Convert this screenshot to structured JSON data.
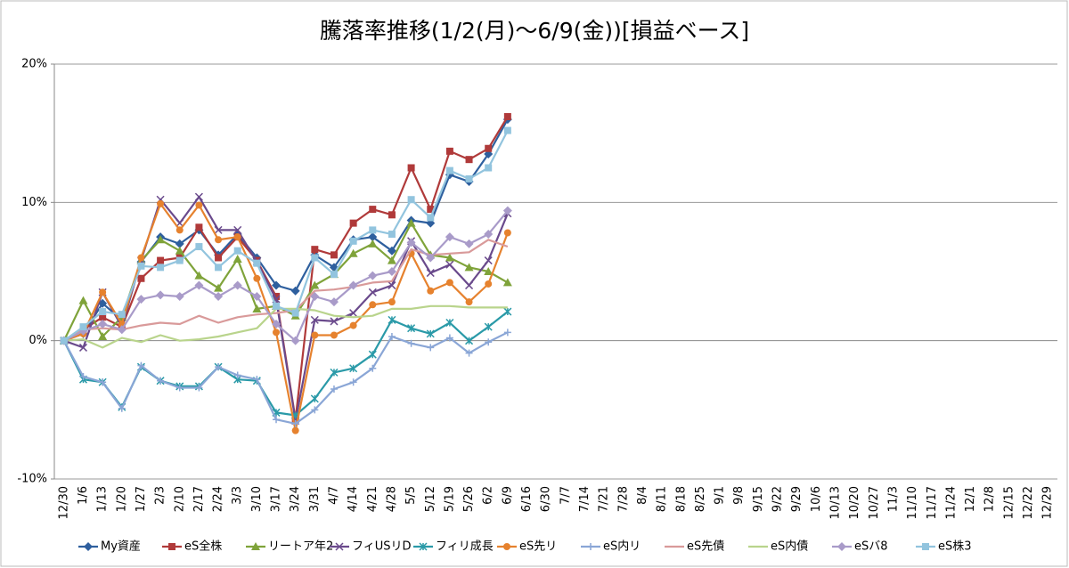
{
  "chart_data": {
    "type": "line",
    "title": "騰落率推移(1/2(月)〜6/9(金))[損益ベース]",
    "categories": [
      "12/30",
      "1/6",
      "1/13",
      "1/20",
      "1/27",
      "2/3",
      "2/10",
      "2/17",
      "2/24",
      "3/3",
      "3/10",
      "3/17",
      "3/24",
      "3/31",
      "4/7",
      "4/14",
      "4/21",
      "4/28",
      "5/5",
      "5/12",
      "5/19",
      "5/26",
      "6/2",
      "6/9",
      "6/16",
      "6/30",
      "7/7",
      "7/14",
      "7/21",
      "7/28",
      "8/4",
      "8/11",
      "8/18",
      "8/25",
      "9/1",
      "9/8",
      "9/15",
      "9/22",
      "9/29",
      "10/6",
      "10/13",
      "10/20",
      "10/27",
      "11/3",
      "11/10",
      "11/17",
      "11/24",
      "12/1",
      "12/8",
      "12/15",
      "12/22",
      "12/29"
    ],
    "ylim": [
      -10,
      20
    ],
    "yticks": [
      {
        "value": -10,
        "label": "-10%"
      },
      {
        "value": 0,
        "label": "0%"
      },
      {
        "value": 10,
        "label": "10%"
      },
      {
        "value": 20,
        "label": "20%"
      }
    ],
    "grid": true,
    "legend": "bottom",
    "series": [
      {
        "name": "My資産",
        "color": "#2e5f9e",
        "marker": "diamond",
        "values": [
          0,
          0.5,
          2.7,
          1.5,
          5.7,
          7.5,
          7.0,
          8.0,
          6.2,
          7.7,
          6.0,
          4.0,
          3.6,
          6.2,
          5.3,
          7.3,
          7.5,
          6.5,
          8.7,
          8.5,
          12.0,
          11.5,
          13.5,
          16.0,
          null,
          null,
          null,
          null,
          null,
          null,
          null,
          null,
          null,
          null,
          null,
          null,
          null,
          null,
          null,
          null,
          null,
          null,
          null,
          null,
          null,
          null,
          null,
          null,
          null,
          null,
          null,
          null
        ]
      },
      {
        "name": "eS全株",
        "color": "#b03a3a",
        "marker": "square",
        "values": [
          0,
          0.8,
          1.7,
          1.0,
          4.5,
          5.8,
          6.0,
          8.2,
          6.0,
          7.5,
          5.8,
          3.2,
          -5.7,
          6.6,
          6.2,
          8.5,
          9.5,
          9.1,
          12.5,
          9.5,
          13.7,
          13.1,
          13.9,
          16.2,
          null,
          null,
          null,
          null,
          null,
          null,
          null,
          null,
          null,
          null,
          null,
          null,
          null,
          null,
          null,
          null,
          null,
          null,
          null,
          null,
          null,
          null,
          null,
          null,
          null,
          null,
          null,
          null
        ]
      },
      {
        "name": "リートア年2",
        "color": "#7fa33a",
        "marker": "triangle",
        "values": [
          0,
          2.9,
          0.3,
          1.7,
          5.8,
          7.3,
          6.5,
          4.7,
          3.8,
          5.9,
          2.3,
          2.5,
          1.8,
          4.0,
          4.8,
          6.3,
          7.0,
          5.8,
          8.5,
          6.2,
          6.0,
          5.3,
          5.0,
          4.2,
          null,
          null,
          null,
          null,
          null,
          null,
          null,
          null,
          null,
          null,
          null,
          null,
          null,
          null,
          null,
          null,
          null,
          null,
          null,
          null,
          null,
          null,
          null,
          null,
          null,
          null,
          null,
          null
        ]
      },
      {
        "name": "フィUSリD",
        "color": "#6a4a8c",
        "marker": "x",
        "values": [
          0,
          -0.5,
          3.5,
          1.0,
          5.8,
          10.2,
          8.5,
          10.4,
          8.0,
          8.0,
          5.7,
          3.0,
          -5.8,
          1.5,
          1.4,
          2.0,
          3.5,
          4.0,
          7.2,
          4.9,
          5.5,
          4.0,
          5.8,
          9.2,
          null,
          null,
          null,
          null,
          null,
          null,
          null,
          null,
          null,
          null,
          null,
          null,
          null,
          null,
          null,
          null,
          null,
          null,
          null,
          null,
          null,
          null,
          null,
          null,
          null,
          null,
          null,
          null
        ]
      },
      {
        "name": "フィリ成長",
        "color": "#2a9aa8",
        "marker": "asterisk",
        "values": [
          0,
          -2.8,
          -3.0,
          -4.8,
          -1.9,
          -2.9,
          -3.3,
          -3.3,
          -1.9,
          -2.8,
          -2.9,
          -5.2,
          -5.4,
          -4.2,
          -2.3,
          -2.0,
          -1.0,
          1.5,
          0.9,
          0.5,
          1.3,
          0.0,
          1.0,
          2.1,
          null,
          null,
          null,
          null,
          null,
          null,
          null,
          null,
          null,
          null,
          null,
          null,
          null,
          null,
          null,
          null,
          null,
          null,
          null,
          null,
          null,
          null,
          null,
          null,
          null,
          null,
          null,
          null
        ]
      },
      {
        "name": "eS先リ",
        "color": "#e6822e",
        "marker": "circle",
        "values": [
          0,
          0.5,
          3.5,
          1.2,
          6.0,
          9.9,
          8.0,
          9.8,
          7.3,
          7.5,
          4.5,
          0.6,
          -6.5,
          0.4,
          0.4,
          1.1,
          2.6,
          2.8,
          6.3,
          3.6,
          4.2,
          2.8,
          4.1,
          7.8,
          null,
          null,
          null,
          null,
          null,
          null,
          null,
          null,
          null,
          null,
          null,
          null,
          null,
          null,
          null,
          null,
          null,
          null,
          null,
          null,
          null,
          null,
          null,
          null,
          null,
          null,
          null,
          null
        ]
      },
      {
        "name": "eS内リ",
        "color": "#8aa6d6",
        "marker": "plus",
        "values": [
          0,
          -2.6,
          -3.0,
          -4.9,
          -1.8,
          -2.9,
          -3.4,
          -3.4,
          -1.9,
          -2.5,
          -2.8,
          -5.7,
          -6.0,
          -5.0,
          -3.5,
          -3.0,
          -2.0,
          0.3,
          -0.2,
          -0.5,
          0.2,
          -0.9,
          -0.1,
          0.6,
          null,
          null,
          null,
          null,
          null,
          null,
          null,
          null,
          null,
          null,
          null,
          null,
          null,
          null,
          null,
          null,
          null,
          null,
          null,
          null,
          null,
          null,
          null,
          null,
          null,
          null,
          null,
          null
        ]
      },
      {
        "name": "eS先債",
        "color": "#d99a9a",
        "marker": "none",
        "values": [
          0,
          0.8,
          0.9,
          0.8,
          1.1,
          1.3,
          1.2,
          1.8,
          1.3,
          1.7,
          1.9,
          2.0,
          2.2,
          3.6,
          3.7,
          3.9,
          4.2,
          4.3,
          6.6,
          6.2,
          6.3,
          6.4,
          7.3,
          6.8,
          null,
          null,
          null,
          null,
          null,
          null,
          null,
          null,
          null,
          null,
          null,
          null,
          null,
          null,
          null,
          null,
          null,
          null,
          null,
          null,
          null,
          null,
          null,
          null,
          null,
          null,
          null,
          null
        ]
      },
      {
        "name": "eS内債",
        "color": "#b9d48c",
        "marker": "none",
        "values": [
          0,
          0.1,
          -0.5,
          0.2,
          -0.1,
          0.4,
          0.0,
          0.1,
          0.3,
          0.6,
          0.9,
          2.3,
          2.3,
          2.2,
          1.8,
          1.7,
          1.8,
          2.3,
          2.3,
          2.5,
          2.5,
          2.4,
          2.4,
          2.4,
          null,
          null,
          null,
          null,
          null,
          null,
          null,
          null,
          null,
          null,
          null,
          null,
          null,
          null,
          null,
          null,
          null,
          null,
          null,
          null,
          null,
          null,
          null,
          null,
          null,
          null,
          null,
          null
        ]
      },
      {
        "name": "eSバ8",
        "color": "#a99bc9",
        "marker": "diamond",
        "values": [
          0,
          0.7,
          1.2,
          0.8,
          3.0,
          3.3,
          3.2,
          4.0,
          3.2,
          4.0,
          3.2,
          1.2,
          0.0,
          3.2,
          2.8,
          4.0,
          4.7,
          5.0,
          7.1,
          6.0,
          7.5,
          7.0,
          7.7,
          9.4,
          null,
          null,
          null,
          null,
          null,
          null,
          null,
          null,
          null,
          null,
          null,
          null,
          null,
          null,
          null,
          null,
          null,
          null,
          null,
          null,
          null,
          null,
          null,
          null,
          null,
          null,
          null,
          null
        ]
      },
      {
        "name": "eS株3",
        "color": "#92c4de",
        "marker": "square",
        "values": [
          0,
          1.0,
          2.1,
          1.9,
          5.4,
          5.3,
          5.8,
          6.8,
          5.3,
          6.5,
          5.6,
          2.5,
          2.0,
          6.0,
          4.8,
          7.2,
          8.0,
          7.7,
          10.2,
          8.9,
          12.3,
          11.7,
          12.5,
          15.2,
          null,
          null,
          null,
          null,
          null,
          null,
          null,
          null,
          null,
          null,
          null,
          null,
          null,
          null,
          null,
          null,
          null,
          null,
          null,
          null,
          null,
          null,
          null,
          null,
          null,
          null,
          null,
          null
        ]
      }
    ]
  }
}
